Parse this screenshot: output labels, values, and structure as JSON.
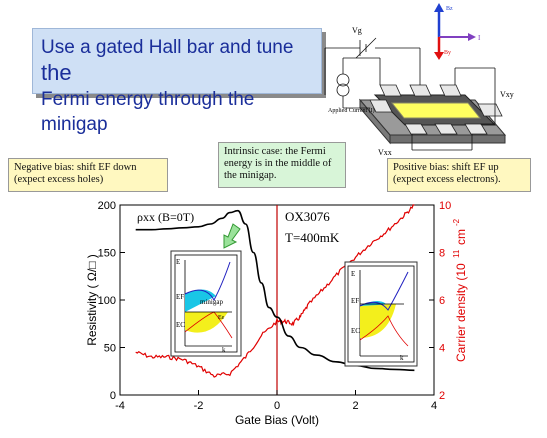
{
  "title": {
    "line1_a": "Use a gated Hall bar and tune ",
    "line1_b": "the",
    "line2": "Fermi energy through the minigap"
  },
  "device": {
    "vg_label": "Vg",
    "source_label": "Applied\nCurrent\n(I)",
    "vxy_label": "Vxy",
    "vxx_label": "Vxx",
    "axis_labels": {
      "z": "Bz",
      "x": "I",
      "y": "By"
    }
  },
  "callouts": {
    "negative": [
      "Negative bias: shift EF down",
      "(expect excess holes)"
    ],
    "middle": [
      "Intrinsic case: the Fermi",
      "energy is in the middle of",
      "the minigap."
    ],
    "positive": [
      "Positive bias: shift EF up",
      "(expect excess electrons)."
    ]
  },
  "plot": {
    "rho_label": "ρxx (B=0T)",
    "sample_label": "OX3076",
    "temp_label": "T=400mK",
    "xlabel": "Gate Bias (Volt)",
    "ylabel_left": "Resistivity ( Ω/□ )",
    "ylabel_right": "Carrier density (10",
    "ylabel_right_exp": "11",
    "ylabel_right_unit": "cm",
    "ylabel_right_unit_exp": "-2",
    "x_ticks": [
      "-4",
      "-2",
      "0",
      "2",
      "4"
    ],
    "y_left_ticks": [
      "0",
      "50",
      "100",
      "150",
      "200"
    ],
    "y_right_ticks": [
      "2",
      "4",
      "6",
      "8",
      "10"
    ]
  },
  "inset_left": {
    "e_label": "E",
    "ef_label": "EF",
    "ec_label": "EC",
    "minigap_label": "minigap",
    "ee_label": "Ee",
    "k_label": "k"
  },
  "inset_right": {
    "e_label": "E",
    "ef_label": "EF",
    "ec_label": "EC",
    "k_label": "k"
  },
  "colors": {
    "density_curve": "#e00000",
    "resistivity_curve": "#000000",
    "zero_line": "#c00000",
    "title_text": "#1a2e9a",
    "inset_cyan": "#19c6e6",
    "inset_yellow": "#f3ef1c",
    "arrow_green": "#9be29b"
  },
  "chart_data": {
    "type": "line",
    "xlabel": "Gate Bias (Volt)",
    "ylabel": "Resistivity ( Ω/□ )",
    "y2label": "Carrier density (10^11 cm^-2)",
    "xlim": [
      -4,
      4
    ],
    "ylim": [
      0,
      200
    ],
    "y2lim": [
      2,
      10
    ],
    "series": [
      {
        "name": "ρxx (B=0T)",
        "axis": "left",
        "x": [
          -3.6,
          -3.2,
          -2.8,
          -2.4,
          -2.0,
          -1.7,
          -1.4,
          -1.2,
          -1.0,
          -0.8,
          -0.6,
          -0.4,
          -0.2,
          0.0,
          0.3,
          0.6,
          1.0,
          1.5,
          2.0,
          2.5,
          3.0,
          3.5
        ],
        "values": [
          174,
          174,
          175,
          176,
          177,
          180,
          186,
          192,
          194,
          180,
          150,
          118,
          92,
          82,
          62,
          50,
          42,
          35,
          31,
          28,
          27,
          26
        ]
      },
      {
        "name": "Carrier density",
        "axis": "right",
        "x": [
          -3.6,
          -3.2,
          -2.8,
          -2.4,
          -2.0,
          -1.6,
          -1.2,
          -0.8,
          -0.4,
          0.0,
          0.2,
          0.4,
          0.6,
          0.8,
          1.2,
          1.6,
          2.0,
          2.4,
          2.8,
          3.2,
          3.5
        ],
        "values": [
          3.8,
          3.6,
          3.6,
          3.5,
          3.2,
          2.8,
          2.9,
          3.6,
          4.5,
          5.1,
          5.1,
          5.0,
          5.3,
          5.8,
          6.5,
          7.2,
          7.8,
          8.4,
          8.9,
          9.5,
          10.0
        ]
      }
    ]
  }
}
